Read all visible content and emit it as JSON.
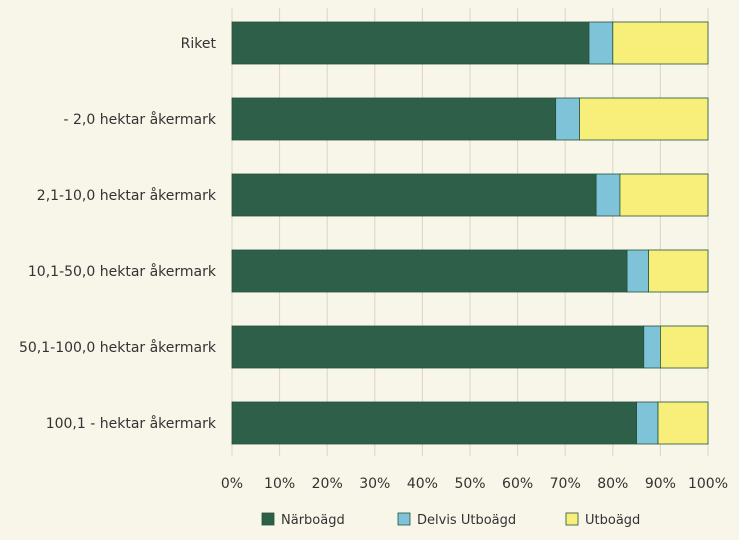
{
  "chart_data": {
    "type": "bar",
    "orientation": "horizontal",
    "stacked": true,
    "percent": true,
    "categories": [
      "Riket",
      "- 2,0 hektar åkermark",
      "2,1-10,0 hektar åkermark",
      "10,1-50,0 hektar åkermark",
      "50,1-100,0 hektar åkermark",
      "100,1 - hektar åkermark"
    ],
    "series": [
      {
        "name": "Närboägd",
        "color": "#2e6049",
        "values": [
          75,
          68,
          76.5,
          83,
          86.5,
          85
        ]
      },
      {
        "name": "Delvis Utboägd",
        "color": "#7fc3d8",
        "values": [
          5,
          5,
          5,
          4.5,
          3.5,
          4.5
        ]
      },
      {
        "name": "Utboägd",
        "color": "#f7ef7a",
        "values": [
          20,
          27,
          18.5,
          12.5,
          10,
          10.5
        ]
      }
    ],
    "xticks": [
      "0%",
      "10%",
      "20%",
      "30%",
      "40%",
      "50%",
      "60%",
      "70%",
      "80%",
      "90%",
      "100%"
    ],
    "xlim": [
      0,
      100
    ],
    "grid": true,
    "legend_position": "bottom"
  }
}
